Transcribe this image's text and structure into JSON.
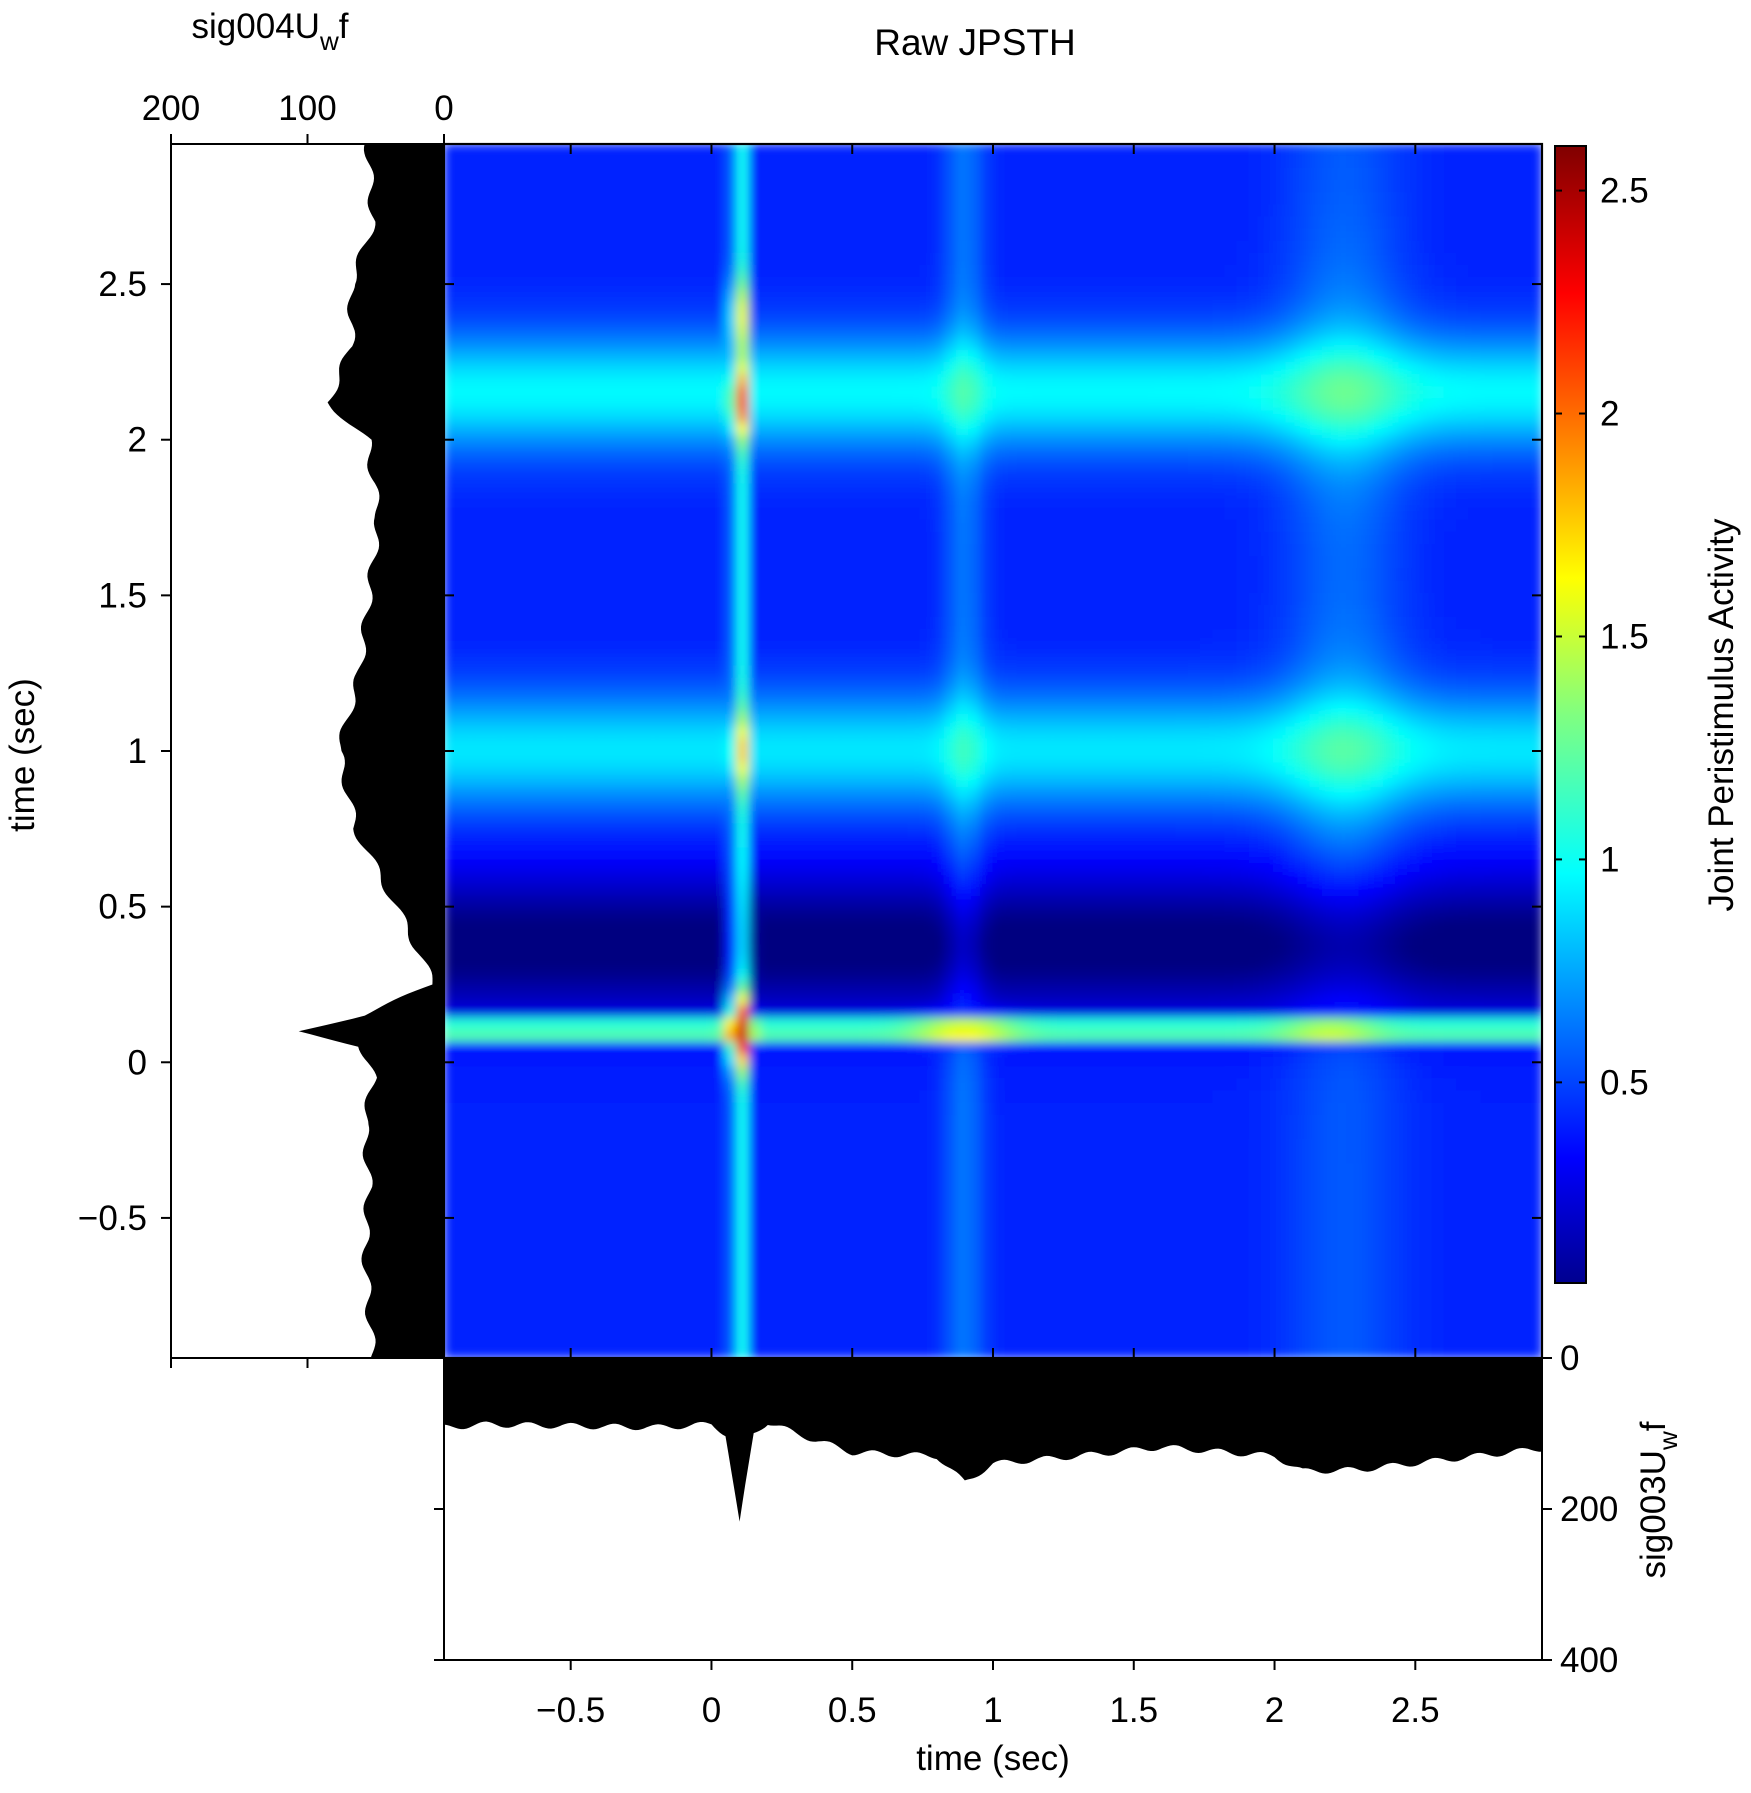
{
  "chart_data": {
    "type": "heatmap",
    "title": "Raw JPSTH",
    "xlabel": "time (sec)",
    "ylabel": "time (sec)",
    "xlim": [
      -0.95,
      2.95
    ],
    "ylim": [
      -0.95,
      2.95
    ],
    "xticks": [
      -0.5,
      0,
      0.5,
      1,
      1.5,
      2,
      2.5
    ],
    "xtick_labels": [
      "−0.5",
      "0",
      "0.5",
      "1",
      "1.5",
      "2",
      "2.5"
    ],
    "yticks": [
      -0.5,
      0,
      0.5,
      1,
      1.5,
      2,
      2.5
    ],
    "ytick_labels": [
      "−0.5",
      "0",
      "0.5",
      "1",
      "1.5",
      "2",
      "2.5"
    ],
    "colormap": "jet",
    "colorbar": {
      "label": "Joint Peristimulus Activity",
      "range": [
        0.05,
        2.6
      ],
      "ticks": [
        0.5,
        1,
        1.5,
        2,
        2.5
      ],
      "tick_labels": [
        "0.5",
        "1",
        "1.5",
        "2",
        "2.5"
      ]
    },
    "heatmap_features": {
      "background_level": 0.45,
      "vertical_ridge": {
        "x": 0.1,
        "peak_values": [
          {
            "y": 0.1,
            "value": 2.6
          },
          {
            "y": 2.12,
            "value": 2.0
          },
          {
            "y": 1.0,
            "value": 1.65
          },
          {
            "y": 2.4,
            "value": 1.6
          }
        ]
      },
      "horizontal_ridge": {
        "y": 0.1,
        "peak_values": [
          {
            "x": 0.1,
            "value": 2.6
          },
          {
            "x": 0.9,
            "value": 1.85
          },
          {
            "x": 2.2,
            "value": 1.7
          }
        ]
      },
      "bright_bands_y": [
        {
          "y": 2.15,
          "value": 1.0
        },
        {
          "y": 1.0,
          "value": 0.95
        }
      ],
      "dark_band": {
        "y_from": 0.2,
        "y_to": 0.55,
        "value": 0.05
      }
    },
    "top_histogram": {
      "label_base": "sig004U",
      "label_sub": "w",
      "label_suffix": "f",
      "ticks": [
        200,
        100,
        0
      ],
      "tick_labels": [
        "200",
        "100",
        "0"
      ],
      "values_y_time": [
        -0.95,
        -0.8,
        -0.6,
        -0.4,
        -0.2,
        -0.05,
        0.05,
        0.1,
        0.15,
        0.25,
        0.35,
        0.5,
        0.75,
        1.0,
        1.25,
        1.5,
        1.75,
        2.0,
        2.12,
        2.3,
        2.5,
        2.7,
        2.95
      ],
      "values_rate": [
        52,
        55,
        58,
        55,
        58,
        52,
        60,
        108,
        60,
        8,
        18,
        35,
        65,
        77,
        62,
        55,
        48,
        56,
        85,
        68,
        68,
        52,
        56
      ]
    },
    "bottom_histogram": {
      "label_base": "sig003U",
      "label_sub": "w",
      "label_suffix": "f",
      "ticks": [
        0,
        200,
        400
      ],
      "tick_labels": [
        "0",
        "200",
        "400"
      ],
      "values_x_time": [
        -0.95,
        -0.8,
        -0.5,
        -0.2,
        0.0,
        0.05,
        0.1,
        0.15,
        0.2,
        0.3,
        0.5,
        0.8,
        0.9,
        1.0,
        1.3,
        1.6,
        2.0,
        2.1,
        2.3,
        2.6,
        2.95
      ],
      "values_rate": [
        92,
        88,
        90,
        92,
        88,
        100,
        220,
        100,
        85,
        100,
        125,
        130,
        165,
        140,
        130,
        118,
        130,
        150,
        148,
        135,
        120
      ]
    }
  }
}
